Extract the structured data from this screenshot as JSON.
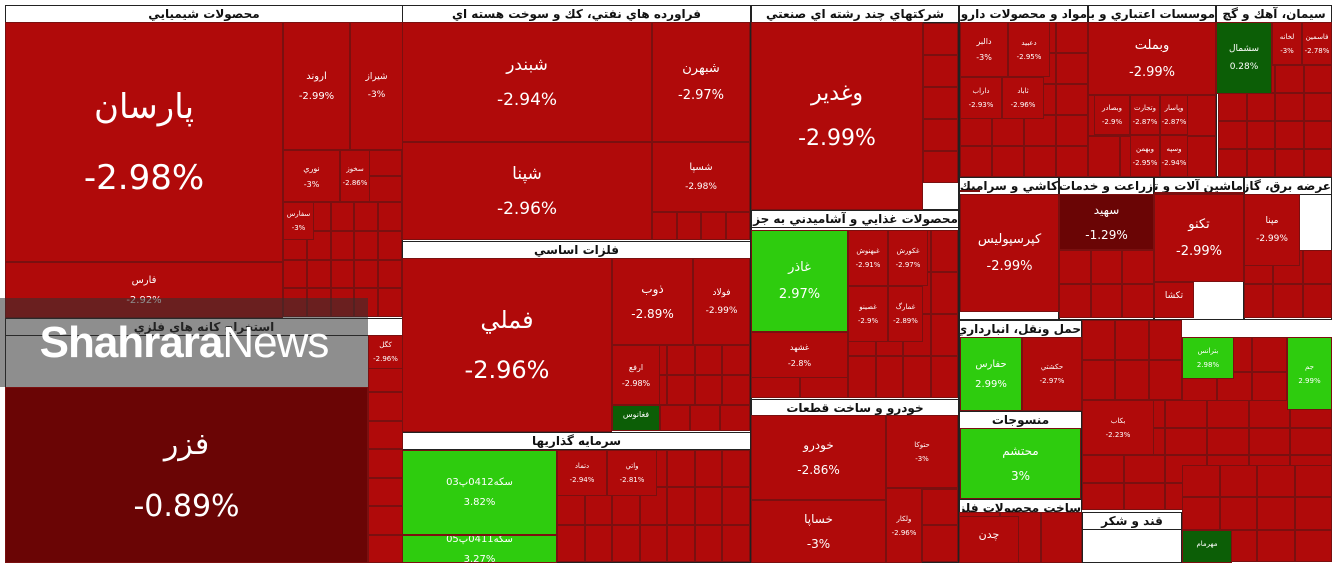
{
  "watermark": {
    "bold": "Shahrara",
    "light": "News"
  },
  "colors": {
    "down": "#b00a0a",
    "down_dark": "#6a0505",
    "up": "#2ecc0e",
    "up_dark": "#0c5e06",
    "border": "#222222"
  },
  "sectors": [
    {
      "name": "محصولات شيميايي"
    },
    {
      "name": "فراورده هاي نفتي، كك و سوخت هسته اي"
    },
    {
      "name": "شركتهاي چند رشته اي صنعتي"
    },
    {
      "name": "مواد و محصولات دارويي"
    },
    {
      "name": "موسسات اعتباري و بانکها"
    },
    {
      "name": "سيمان، آهك و گچ"
    },
    {
      "name": "فلزات اساسي"
    },
    {
      "name": "محصولات غذايي و آشاميدني به جز قند و شکر"
    },
    {
      "name": "استخراج كانه هاي فلزي"
    },
    {
      "name": "كاشي و سراميك"
    },
    {
      "name": "زراعت و خدمات وابسته"
    },
    {
      "name": "ماشين آلات و تجهيزات"
    },
    {
      "name": "عرضه برق، گاز، بخار"
    },
    {
      "name": "سرمايه گذاريها"
    },
    {
      "name": "خودرو و ساخت قطعات"
    },
    {
      "name": "حمل ونقل، انبارداري و ارتباطات"
    },
    {
      "name": "منسوجات"
    },
    {
      "name": "ساخت محصولات فلزي"
    },
    {
      "name": "قند و شکر"
    }
  ],
  "tiles": [
    {
      "symbol": "پارسان",
      "change": "-2.98%"
    },
    {
      "symbol": "اروند",
      "change": "-2.99%"
    },
    {
      "symbol": "شيراز",
      "change": "-3%"
    },
    {
      "symbol": "نوري",
      "change": "-3%"
    },
    {
      "symbol": "فارس",
      "change": "-2.92%"
    },
    {
      "symbol": "فزر",
      "change": "-0.89%"
    },
    {
      "symbol": "كگل",
      "change": "-2.96%"
    },
    {
      "symbol": "شبندر",
      "change": "-2.94%"
    },
    {
      "symbol": "شبهرن",
      "change": "-2.97%"
    },
    {
      "symbol": "شپنا",
      "change": "-2.96%"
    },
    {
      "symbol": "شسپا",
      "change": "-2.98%"
    },
    {
      "symbol": "فملي",
      "change": "-2.96%"
    },
    {
      "symbol": "ذوب",
      "change": "-2.89%"
    },
    {
      "symbol": "فولاد",
      "change": "-2.99%"
    },
    {
      "symbol": "ارفع",
      "change": "-2.98%"
    },
    {
      "symbol": "فغانوس",
      "change": ""
    },
    {
      "symbol": "سكه0412پ03",
      "change": "3.82%"
    },
    {
      "symbol": "سكه0411پ05",
      "change": "3.27%"
    },
    {
      "symbol": "وغدير",
      "change": "-2.99%"
    },
    {
      "symbol": "غاذر",
      "change": "2.97%"
    },
    {
      "symbol": "غشهد",
      "change": "-2.8%"
    },
    {
      "symbol": "خودرو",
      "change": "-2.86%"
    },
    {
      "symbol": "خساپا",
      "change": "-3%"
    },
    {
      "symbol": "وبملت",
      "change": "-2.99%"
    },
    {
      "symbol": "سشمال",
      "change": "0.28%"
    },
    {
      "symbol": "كپرسپوليس",
      "change": "-2.99%"
    },
    {
      "symbol": "سهيد",
      "change": "-1.29%"
    },
    {
      "symbol": "تكنو",
      "change": "-2.99%"
    },
    {
      "symbol": "تكشا",
      "change": ""
    },
    {
      "symbol": "مپنا",
      "change": "-2.99%"
    },
    {
      "symbol": "حفارس",
      "change": "2.99%"
    },
    {
      "symbol": "محتشم",
      "change": "3%"
    },
    {
      "symbol": "جم",
      "change": "2.99%"
    },
    {
      "symbol": "بترانس",
      "change": "2.98%"
    },
    {
      "symbol": "چدن",
      "change": ""
    },
    {
      "symbol": "مهرمام",
      "change": ""
    },
    {
      "symbol": "وبصادر",
      "change": "-2.9%"
    },
    {
      "symbol": "وتجارت",
      "change": "-2.87%"
    },
    {
      "symbol": "وپاسار",
      "change": "-2.87%"
    },
    {
      "symbol": "دالبر",
      "change": "-3%"
    },
    {
      "symbol": "دعبيد",
      "change": "-2.95%"
    },
    {
      "symbol": "داراب",
      "change": "-2.93%"
    },
    {
      "symbol": "دتماد",
      "change": "-2.94%"
    },
    {
      "symbol": "سفارس",
      "change": "-3%"
    },
    {
      "symbol": "سخوز",
      "change": "-2.86%"
    },
    {
      "symbol": "غبهنوش",
      "change": "-2.91%"
    },
    {
      "symbol": "غكورش",
      "change": "-2.97%"
    },
    {
      "symbol": "غصينو",
      "change": "-2.9%"
    },
    {
      "symbol": "غمارگ",
      "change": "-2.89%"
    },
    {
      "symbol": "حكشتي",
      "change": "-2.97%"
    },
    {
      "symbol": "حتوكا",
      "change": "-3%"
    },
    {
      "symbol": "ولكار",
      "change": "-2.96%"
    },
    {
      "symbol": "بكاب",
      "change": "-2.23%"
    },
    {
      "symbol": "وبهمن",
      "change": "-2.95%"
    },
    {
      "symbol": "وسپه",
      "change": "-2.94%"
    },
    {
      "symbol": "واتي",
      "change": "-2.81%"
    },
    {
      "symbol": "لخانه",
      "change": "-3%"
    },
    {
      "symbol": "فاسمين",
      "change": "-2.78%"
    },
    {
      "symbol": "ثاباد",
      "change": "-2.96%"
    }
  ]
}
